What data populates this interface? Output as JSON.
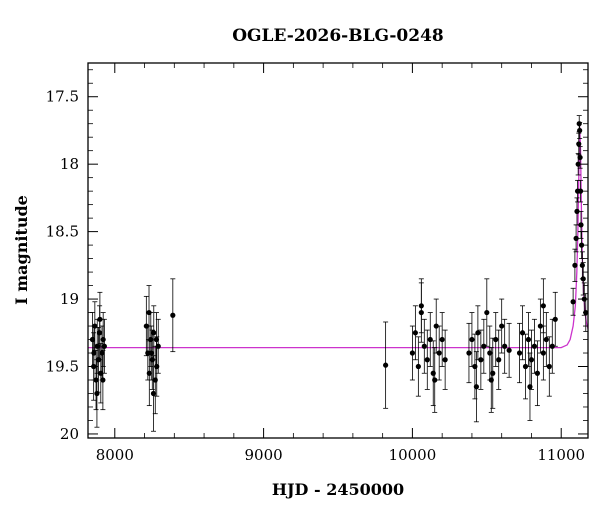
{
  "chart_data": {
    "type": "scatter",
    "title": "OGLE-2026-BLG-0248",
    "xlabel": "HJD - 2450000",
    "ylabel": "I magnitude",
    "xlim": [
      7820,
      11180
    ],
    "ylim": [
      20.03,
      17.25
    ],
    "y_inverted": true,
    "grid": false,
    "x_ticks": [
      8000,
      9000,
      10000,
      11000
    ],
    "x_tick_labels": [
      "8000",
      "9000",
      "10000",
      "11000"
    ],
    "y_ticks": [
      17.5,
      18,
      18.5,
      19,
      19.5,
      20
    ],
    "y_tick_labels": [
      "17.5",
      "18",
      "18.5",
      "19",
      "19.5",
      "20"
    ],
    "baseline_magnitude": 19.36,
    "colors": {
      "points": "#000000",
      "model": "#cc33cc",
      "frame": "#000000"
    },
    "series": [
      {
        "kind": "model",
        "x": [
          7820,
          9000,
          10000,
          10800,
          10950,
          11000,
          11040,
          11060,
          11080,
          11095,
          11105,
          11112,
          11118,
          11124,
          11130,
          11136,
          11142,
          11150,
          11160,
          11170,
          11180
        ],
        "y": [
          19.36,
          19.36,
          19.36,
          19.36,
          19.36,
          19.36,
          19.34,
          19.3,
          19.2,
          19.05,
          18.8,
          18.5,
          18.1,
          17.72,
          17.9,
          18.35,
          18.7,
          18.95,
          19.1,
          19.18,
          19.22
        ]
      },
      {
        "kind": "observations",
        "x": [
          7850,
          7858,
          7866,
          7874,
          7882,
          7890,
          7898,
          7906,
          7914,
          7922,
          7880,
          7900,
          7920,
          7860,
          7930,
          8212,
          8222,
          8232,
          8242,
          8252,
          8262,
          8272,
          8282,
          8292,
          8230,
          8260,
          8245,
          8280,
          8390,
          9820,
          10000,
          10020,
          10040,
          10060,
          10080,
          10100,
          10120,
          10140,
          10160,
          10180,
          10200,
          10220,
          10060,
          10150,
          10380,
          10400,
          10420,
          10440,
          10460,
          10480,
          10500,
          10520,
          10540,
          10560,
          10580,
          10600,
          10620,
          10650,
          10430,
          10530,
          10720,
          10740,
          10760,
          10780,
          10800,
          10820,
          10840,
          10860,
          10880,
          10900,
          10920,
          10940,
          10960,
          10790,
          10880,
          11080,
          11092,
          11100,
          11106,
          11110,
          11114,
          11118,
          11121,
          11124,
          11127,
          11130,
          11133,
          11137,
          11142,
          11148,
          11155,
          11165
        ],
        "y": [
          19.3,
          19.5,
          19.2,
          19.6,
          19.35,
          19.45,
          19.25,
          19.55,
          19.4,
          19.3,
          19.7,
          19.15,
          19.6,
          19.4,
          19.35,
          19.2,
          19.4,
          19.55,
          19.3,
          19.45,
          19.25,
          19.6,
          19.5,
          19.35,
          19.1,
          19.7,
          19.4,
          19.3,
          19.12,
          19.49,
          19.4,
          19.25,
          19.5,
          19.1,
          19.35,
          19.45,
          19.3,
          19.55,
          19.2,
          19.4,
          19.3,
          19.45,
          19.05,
          19.6,
          19.4,
          19.3,
          19.5,
          19.25,
          19.45,
          19.35,
          19.1,
          19.4,
          19.55,
          19.3,
          19.45,
          19.2,
          19.35,
          19.38,
          19.65,
          19.6,
          19.4,
          19.25,
          19.5,
          19.3,
          19.45,
          19.35,
          19.55,
          19.2,
          19.4,
          19.3,
          19.5,
          19.35,
          19.15,
          19.65,
          19.05,
          19.02,
          18.75,
          18.55,
          18.35,
          18.2,
          18.0,
          17.85,
          17.7,
          17.75,
          17.95,
          18.2,
          18.45,
          18.6,
          18.75,
          18.85,
          19.0,
          19.1
        ],
        "yerr": [
          0.2,
          0.25,
          0.18,
          0.22,
          0.2,
          0.24,
          0.2,
          0.22,
          0.2,
          0.2,
          0.25,
          0.2,
          0.22,
          0.2,
          0.2,
          0.22,
          0.2,
          0.24,
          0.2,
          0.22,
          0.2,
          0.25,
          0.22,
          0.2,
          0.2,
          0.28,
          0.2,
          0.2,
          0.27,
          0.32,
          0.2,
          0.2,
          0.22,
          0.22,
          0.2,
          0.22,
          0.2,
          0.24,
          0.2,
          0.2,
          0.2,
          0.22,
          0.2,
          0.24,
          0.22,
          0.2,
          0.24,
          0.2,
          0.22,
          0.2,
          0.25,
          0.2,
          0.26,
          0.2,
          0.22,
          0.2,
          0.2,
          0.2,
          0.26,
          0.24,
          0.22,
          0.2,
          0.24,
          0.2,
          0.22,
          0.2,
          0.24,
          0.2,
          0.2,
          0.2,
          0.22,
          0.2,
          0.2,
          0.25,
          0.2,
          0.1,
          0.12,
          0.1,
          0.1,
          0.08,
          0.08,
          0.08,
          0.06,
          0.06,
          0.08,
          0.08,
          0.1,
          0.1,
          0.1,
          0.12,
          0.12,
          0.14
        ]
      }
    ]
  }
}
